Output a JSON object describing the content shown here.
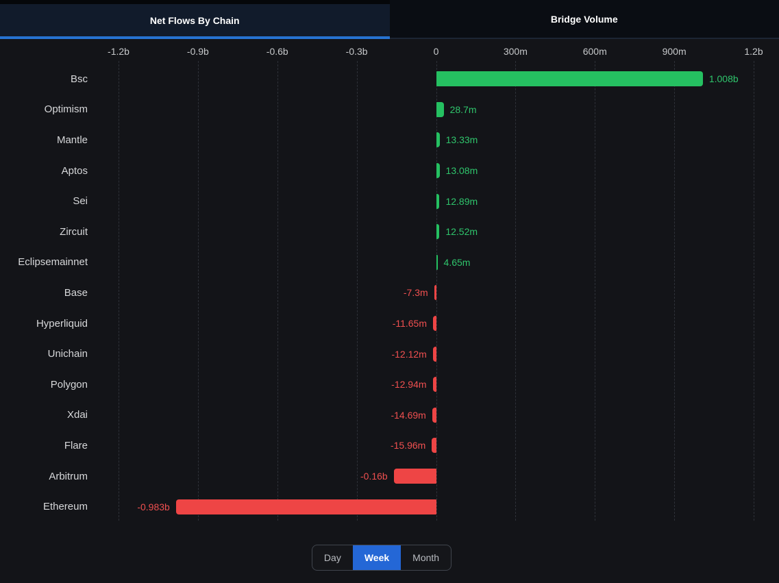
{
  "tabs": [
    {
      "label": "Net Flows By Chain",
      "active": true
    },
    {
      "label": "Bridge Volume",
      "active": false
    }
  ],
  "chart_data": {
    "type": "bar",
    "orientation": "horizontal",
    "title": "Net Flows By Chain",
    "xlim": [
      -1200000000,
      1200000000
    ],
    "axis_ticks": [
      "-1.2b",
      "-0.9b",
      "-0.6b",
      "-0.3b",
      "0",
      "300m",
      "600m",
      "900m",
      "1.2b"
    ],
    "grid": "vertical-dashed",
    "categories": [
      "Bsc",
      "Optimism",
      "Mantle",
      "Aptos",
      "Sei",
      "Zircuit",
      "Eclipsemainnet",
      "Base",
      "Hyperliquid",
      "Unichain",
      "Polygon",
      "Xdai",
      "Flare",
      "Arbitrum",
      "Ethereum"
    ],
    "values": [
      1008000000,
      28700000,
      13330000,
      13080000,
      12890000,
      12520000,
      4650000,
      -7300000,
      -11650000,
      -12120000,
      -12940000,
      -14690000,
      -15960000,
      -160000000,
      -983000000
    ],
    "value_labels": [
      "1.008b",
      "28.7m",
      "13.33m",
      "13.08m",
      "12.89m",
      "12.52m",
      "4.65m",
      "-7.3m",
      "-11.65m",
      "-12.12m",
      "-12.94m",
      "-14.69m",
      "-15.96m",
      "-0.16b",
      "-0.983b"
    ],
    "colors": {
      "positive_bar": "#25c061",
      "negative_bar": "#ee4545",
      "positive_label": "#2fc56c",
      "negative_label": "#f05050"
    }
  },
  "controls": {
    "options": [
      "Day",
      "Week",
      "Month"
    ],
    "selected": "Week"
  },
  "theme": {
    "background": "#131418",
    "tab_active_bg": "#111b2b",
    "tab_underline": "#2673d2",
    "selected_button_bg": "#2467d6",
    "gridline": "#2e3138",
    "label_text": "#d7d8da"
  }
}
